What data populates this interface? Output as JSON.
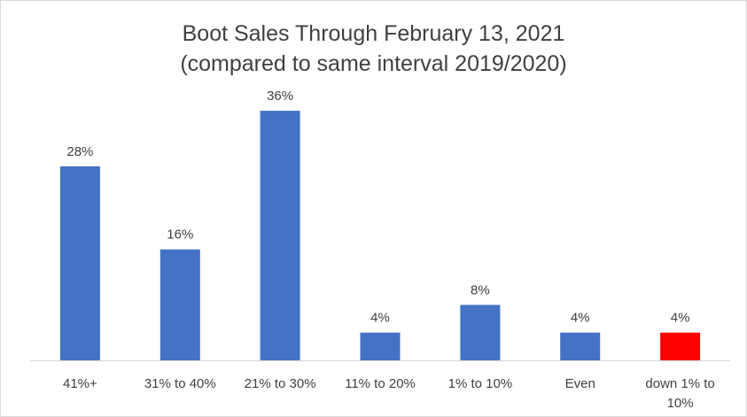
{
  "chart_data": {
    "type": "bar",
    "title_lines": [
      "Boot Sales Through February 13, 2021",
      "(compared to same interval 2019/2020)"
    ],
    "categories": [
      [
        "41%+"
      ],
      [
        "31% to 40%"
      ],
      [
        "21% to 30%"
      ],
      [
        "11% to 20%"
      ],
      [
        "1% to 10%"
      ],
      [
        "Even"
      ],
      [
        "down 1% to",
        "10%"
      ]
    ],
    "values": [
      28,
      16,
      36,
      4,
      8,
      4,
      4
    ],
    "data_labels": [
      "28%",
      "16%",
      "36%",
      "4%",
      "8%",
      "4%",
      "4%"
    ],
    "value_unit": "%",
    "ylim": [
      0,
      40
    ],
    "grid": false,
    "legend": "none",
    "colors": {
      "default_bar": "#4472c4",
      "highlight_bar": "#ff0000",
      "axis_line": "#d9d9d9",
      "label_text": "#404040"
    },
    "highlight_index": 6
  }
}
